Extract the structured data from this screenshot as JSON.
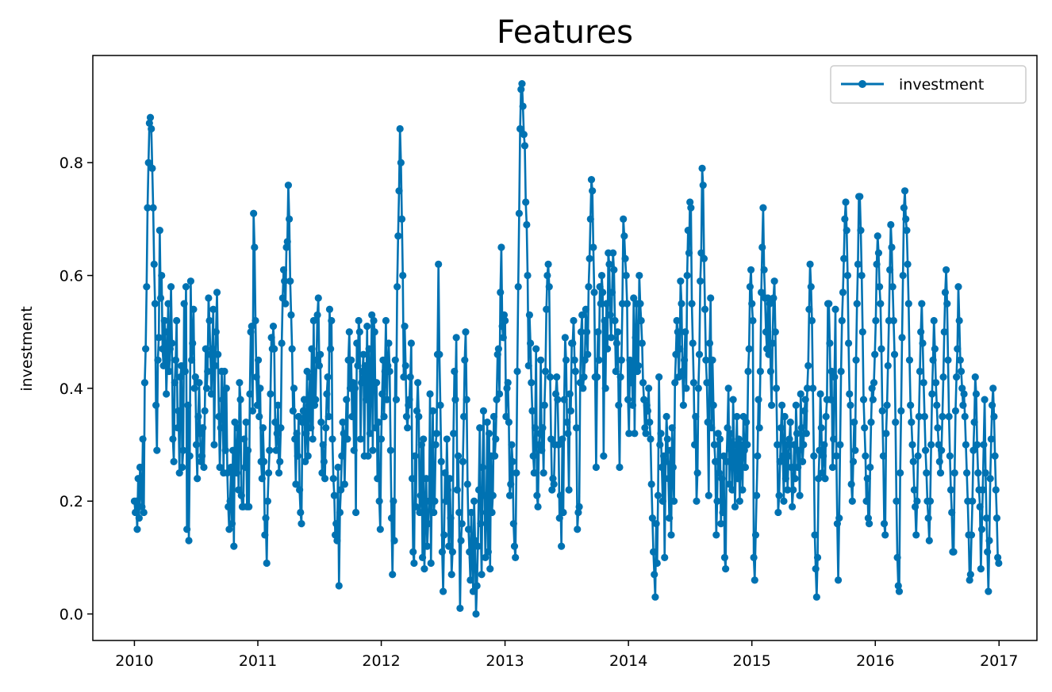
{
  "chart_data": {
    "type": "line",
    "title": "Features",
    "xlabel": "",
    "ylabel": "investment",
    "x_ticks": [
      "2010",
      "2011",
      "2012",
      "2013",
      "2014",
      "2015",
      "2016",
      "2017"
    ],
    "y_ticks": [
      "0.0",
      "0.2",
      "0.4",
      "0.6",
      "0.8"
    ],
    "xlim": [
      "2009-08-31",
      "2017-04-23"
    ],
    "ylim": [
      -0.047,
      0.99
    ],
    "grid": false,
    "legend": {
      "placement": "upper right"
    },
    "x_start": "2010-01-01",
    "x_end": "2016-12-31",
    "series": [
      {
        "name": "investment",
        "color": "#0072b2",
        "marker": "circle",
        "sampling": "weekly",
        "values": [
          0.2,
          0.18,
          0.2,
          0.15,
          0.24,
          0.17,
          0.26,
          0.22,
          0.19,
          0.31,
          0.18,
          0.41,
          0.47,
          0.58,
          0.72,
          0.8,
          0.87,
          0.88,
          0.86,
          0.79,
          0.72,
          0.62,
          0.55,
          0.37,
          0.29,
          0.45,
          0.49,
          0.68,
          0.56,
          0.6,
          0.47,
          0.44,
          0.52,
          0.5,
          0.39,
          0.45,
          0.55,
          0.43,
          0.47,
          0.58,
          0.48,
          0.31,
          0.27,
          0.41,
          0.45,
          0.52,
          0.33,
          0.36,
          0.25,
          0.42,
          0.44,
          0.26,
          0.29,
          0.55,
          0.43,
          0.58,
          0.15,
          0.37,
          0.13,
          0.28,
          0.59,
          0.45,
          0.48,
          0.54,
          0.4,
          0.42,
          0.3,
          0.24,
          0.35,
          0.41,
          0.32,
          0.27,
          0.28,
          0.33,
          0.26,
          0.36,
          0.47,
          0.4,
          0.43,
          0.56,
          0.52,
          0.46,
          0.39,
          0.47,
          0.54,
          0.3,
          0.44,
          0.5,
          0.57,
          0.46,
          0.35,
          0.26,
          0.33,
          0.43,
          0.38,
          0.25,
          0.43,
          0.29,
          0.4,
          0.25,
          0.19,
          0.15,
          0.2,
          0.26,
          0.16,
          0.29,
          0.12,
          0.34,
          0.28,
          0.25,
          0.33,
          0.22,
          0.41,
          0.38,
          0.21,
          0.19,
          0.19,
          0.31,
          0.26,
          0.34,
          0.19,
          0.29,
          0.19,
          0.39,
          0.5,
          0.51,
          0.36,
          0.71,
          0.65,
          0.52,
          0.42,
          0.37,
          0.45,
          0.35,
          0.4,
          0.27,
          0.24,
          0.33,
          0.27,
          0.14,
          0.17,
          0.09,
          0.2,
          0.25,
          0.29,
          0.39,
          0.49,
          0.47,
          0.51,
          0.47,
          0.34,
          0.29,
          0.32,
          0.37,
          0.25,
          0.27,
          0.33,
          0.48,
          0.56,
          0.61,
          0.59,
          0.55,
          0.65,
          0.66,
          0.76,
          0.7,
          0.59,
          0.53,
          0.47,
          0.36,
          0.4,
          0.31,
          0.23,
          0.32,
          0.28,
          0.35,
          0.22,
          0.18,
          0.16,
          0.34,
          0.36,
          0.38,
          0.27,
          0.32,
          0.43,
          0.28,
          0.37,
          0.42,
          0.33,
          0.47,
          0.31,
          0.52,
          0.37,
          0.38,
          0.45,
          0.53,
          0.56,
          0.44,
          0.46,
          0.34,
          0.25,
          0.3,
          0.27,
          0.24,
          0.33,
          0.39,
          0.42,
          0.35,
          0.54,
          0.47,
          0.52,
          0.31,
          0.24,
          0.21,
          0.14,
          0.16,
          0.13,
          0.26,
          0.05,
          0.18,
          0.22,
          0.28,
          0.34,
          0.32,
          0.23,
          0.31,
          0.38,
          0.31,
          0.45,
          0.5,
          0.4,
          0.45,
          0.35,
          0.41,
          0.29,
          0.4,
          0.18,
          0.48,
          0.44,
          0.52,
          0.5,
          0.31,
          0.41,
          0.43,
          0.46,
          0.28,
          0.44,
          0.38,
          0.51,
          0.28,
          0.47,
          0.32,
          0.42,
          0.53,
          0.29,
          0.52,
          0.5,
          0.33,
          0.41,
          0.24,
          0.34,
          0.2,
          0.15,
          0.31,
          0.39,
          0.45,
          0.35,
          0.43,
          0.52,
          0.38,
          0.44,
          0.48,
          0.43,
          0.29,
          0.17,
          0.07,
          0.2,
          0.13,
          0.45,
          0.38,
          0.58,
          0.67,
          0.75,
          0.86,
          0.8,
          0.7,
          0.6,
          0.42,
          0.51,
          0.44,
          0.35,
          0.33,
          0.37,
          0.38,
          0.42,
          0.48,
          0.24,
          0.11,
          0.09,
          0.28,
          0.19,
          0.36,
          0.41,
          0.35,
          0.18,
          0.21,
          0.3,
          0.1,
          0.31,
          0.08,
          0.18,
          0.24,
          0.12,
          0.16,
          0.2,
          0.39,
          0.09,
          0.24,
          0.36,
          0.18,
          0.2,
          0.3,
          0.32,
          0.46,
          0.62,
          0.46,
          0.37,
          0.27,
          0.11,
          0.04,
          0.14,
          0.25,
          0.2,
          0.31,
          0.22,
          0.12,
          0.24,
          0.17,
          0.07,
          0.11,
          0.32,
          0.43,
          0.38,
          0.49,
          0.22,
          0.28,
          0.18,
          0.01,
          0.13,
          0.16,
          0.27,
          0.35,
          0.45,
          0.5,
          0.38,
          0.23,
          0.15,
          0.11,
          0.06,
          0.18,
          0.1,
          0.04,
          0.2,
          0.13,
          0.0,
          0.05,
          0.12,
          0.22,
          0.33,
          0.16,
          0.07,
          0.26,
          0.36,
          0.21,
          0.1,
          0.18,
          0.34,
          0.11,
          0.32,
          0.08,
          0.28,
          0.18,
          0.21,
          0.35,
          0.28,
          0.31,
          0.38,
          0.46,
          0.47,
          0.39,
          0.57,
          0.65,
          0.51,
          0.49,
          0.53,
          0.52,
          0.35,
          0.4,
          0.41,
          0.34,
          0.21,
          0.23,
          0.3,
          0.27,
          0.16,
          0.12,
          0.1,
          0.25,
          0.43,
          0.58,
          0.71,
          0.86,
          0.93,
          0.94,
          0.9,
          0.85,
          0.83,
          0.73,
          0.69,
          0.6,
          0.44,
          0.53,
          0.48,
          0.41,
          0.36,
          0.28,
          0.25,
          0.33,
          0.47,
          0.21,
          0.19,
          0.3,
          0.32,
          0.45,
          0.29,
          0.33,
          0.25,
          0.37,
          0.43,
          0.54,
          0.6,
          0.62,
          0.58,
          0.42,
          0.31,
          0.22,
          0.24,
          0.23,
          0.3,
          0.39,
          0.42,
          0.38,
          0.3,
          0.17,
          0.21,
          0.12,
          0.31,
          0.18,
          0.38,
          0.49,
          0.45,
          0.34,
          0.32,
          0.22,
          0.39,
          0.36,
          0.48,
          0.48,
          0.52,
          0.45,
          0.43,
          0.33,
          0.15,
          0.18,
          0.19,
          0.41,
          0.5,
          0.53,
          0.4,
          0.42,
          0.45,
          0.54,
          0.5,
          0.46,
          0.58,
          0.63,
          0.7,
          0.77,
          0.75,
          0.65,
          0.57,
          0.42,
          0.26,
          0.42,
          0.5,
          0.45,
          0.58,
          0.55,
          0.6,
          0.57,
          0.28,
          0.52,
          0.4,
          0.55,
          0.47,
          0.64,
          0.62,
          0.53,
          0.49,
          0.57,
          0.64,
          0.61,
          0.52,
          0.43,
          0.48,
          0.5,
          0.37,
          0.26,
          0.42,
          0.45,
          0.55,
          0.7,
          0.67,
          0.63,
          0.6,
          0.55,
          0.38,
          0.32,
          0.45,
          0.41,
          0.44,
          0.37,
          0.56,
          0.32,
          0.49,
          0.55,
          0.43,
          0.44,
          0.6,
          0.55,
          0.52,
          0.48,
          0.41,
          0.38,
          0.33,
          0.32,
          0.37,
          0.36,
          0.4,
          0.34,
          0.31,
          0.23,
          0.17,
          0.11,
          0.07,
          0.03,
          0.16,
          0.09,
          0.21,
          0.42,
          0.3,
          0.32,
          0.26,
          0.2,
          0.28,
          0.1,
          0.27,
          0.35,
          0.31,
          0.24,
          0.17,
          0.29,
          0.14,
          0.33,
          0.26,
          0.2,
          0.41,
          0.46,
          0.52,
          0.5,
          0.42,
          0.47,
          0.59,
          0.55,
          0.43,
          0.37,
          0.45,
          0.5,
          0.4,
          0.6,
          0.68,
          0.64,
          0.73,
          0.72,
          0.55,
          0.48,
          0.41,
          0.3,
          0.35,
          0.2,
          0.25,
          0.4,
          0.46,
          0.59,
          0.64,
          0.79,
          0.76,
          0.63,
          0.54,
          0.45,
          0.41,
          0.34,
          0.21,
          0.48,
          0.56,
          0.33,
          0.45,
          0.37,
          0.3,
          0.27,
          0.14,
          0.2,
          0.32,
          0.25,
          0.31,
          0.16,
          0.24,
          0.18,
          0.28,
          0.1,
          0.08,
          0.27,
          0.33,
          0.4,
          0.23,
          0.32,
          0.29,
          0.22,
          0.38,
          0.3,
          0.19,
          0.27,
          0.35,
          0.24,
          0.31,
          0.2,
          0.3,
          0.28,
          0.22,
          0.35,
          0.29,
          0.26,
          0.34,
          0.3,
          0.43,
          0.47,
          0.58,
          0.61,
          0.55,
          0.52,
          0.1,
          0.06,
          0.14,
          0.21,
          0.28,
          0.38,
          0.33,
          0.43,
          0.57,
          0.65,
          0.72,
          0.61,
          0.56,
          0.5,
          0.47,
          0.56,
          0.46,
          0.55,
          0.43,
          0.37,
          0.48,
          0.56,
          0.59,
          0.5,
          0.4,
          0.3,
          0.18,
          0.21,
          0.27,
          0.33,
          0.37,
          0.28,
          0.2,
          0.35,
          0.24,
          0.3,
          0.22,
          0.28,
          0.31,
          0.34,
          0.26,
          0.19,
          0.22,
          0.3,
          0.24,
          0.37,
          0.32,
          0.26,
          0.29,
          0.21,
          0.39,
          0.33,
          0.27,
          0.3,
          0.36,
          0.38,
          0.32,
          0.4,
          0.44,
          0.54,
          0.62,
          0.58,
          0.52,
          0.4,
          0.28,
          0.14,
          0.08,
          0.03,
          0.1,
          0.24,
          0.29,
          0.39,
          0.33,
          0.25,
          0.28,
          0.3,
          0.24,
          0.35,
          0.38,
          0.55,
          0.55,
          0.48,
          0.38,
          0.43,
          0.26,
          0.31,
          0.42,
          0.54,
          0.28,
          0.16,
          0.06,
          0.17,
          0.3,
          0.43,
          0.52,
          0.57,
          0.63,
          0.7,
          0.73,
          0.68,
          0.6,
          0.48,
          0.39,
          0.37,
          0.23,
          0.2,
          0.27,
          0.34,
          0.29,
          0.45,
          0.55,
          0.62,
          0.74,
          0.74,
          0.68,
          0.6,
          0.5,
          0.38,
          0.33,
          0.28,
          0.2,
          0.24,
          0.17,
          0.16,
          0.26,
          0.34,
          0.4,
          0.38,
          0.41,
          0.46,
          0.52,
          0.62,
          0.67,
          0.64,
          0.58,
          0.55,
          0.47,
          0.36,
          0.28,
          0.16,
          0.14,
          0.32,
          0.37,
          0.44,
          0.52,
          0.61,
          0.69,
          0.65,
          0.58,
          0.52,
          0.46,
          0.34,
          0.2,
          0.1,
          0.05,
          0.04,
          0.25,
          0.36,
          0.49,
          0.6,
          0.72,
          0.75,
          0.7,
          0.68,
          0.62,
          0.55,
          0.45,
          0.37,
          0.34,
          0.3,
          0.27,
          0.22,
          0.19,
          0.14,
          0.2,
          0.28,
          0.35,
          0.43,
          0.5,
          0.55,
          0.48,
          0.41,
          0.35,
          0.29,
          0.25,
          0.2,
          0.17,
          0.13,
          0.2,
          0.3,
          0.39,
          0.45,
          0.52,
          0.47,
          0.41,
          0.37,
          0.33,
          0.3,
          0.27,
          0.25,
          0.29,
          0.35,
          0.42,
          0.5,
          0.57,
          0.61,
          0.55,
          0.45,
          0.35,
          0.28,
          0.22,
          0.18,
          0.11,
          0.11,
          0.25,
          0.36,
          0.42,
          0.47,
          0.58,
          0.52,
          0.45,
          0.43,
          0.4,
          0.37,
          0.39,
          0.35,
          0.3,
          0.25,
          0.2,
          0.14,
          0.06,
          0.07,
          0.14,
          0.2,
          0.29,
          0.34,
          0.42,
          0.39,
          0.3,
          0.25,
          0.22,
          0.19,
          0.08,
          0.15,
          0.22,
          0.3,
          0.38,
          0.25,
          0.17,
          0.11,
          0.04,
          0.13,
          0.24,
          0.31,
          0.37,
          0.4,
          0.35,
          0.28,
          0.22,
          0.17,
          0.1,
          0.09
        ]
      }
    ]
  }
}
